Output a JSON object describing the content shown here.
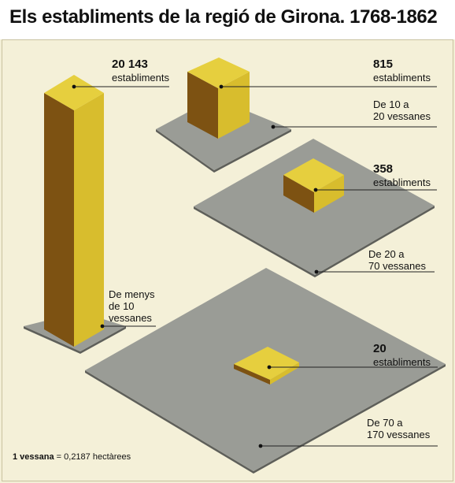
{
  "title": "Els establiments de la regió de Girona. 1768-1862",
  "chart_data": {
    "type": "isometric-block",
    "unit_label": "establiments",
    "groups": [
      {
        "range_label": "De menys de 10 vessanes",
        "range_lines": [
          "De menys",
          "de 10",
          "vessanes"
        ],
        "value": 20143,
        "value_text": "20 143"
      },
      {
        "range_label": "De 10 a 20 vessanes",
        "range_lines": [
          "De 10 a",
          "20 vessanes"
        ],
        "value": 815,
        "value_text": "815"
      },
      {
        "range_label": "De 20 a 70 vessanes",
        "range_lines": [
          "De 20 a",
          "70 vessanes"
        ],
        "value": 358,
        "value_text": "358"
      },
      {
        "range_label": "De 70 a 170 vessanes",
        "range_lines": [
          "De 70 a",
          "170 vessanes"
        ],
        "value": 20,
        "value_text": "20"
      }
    ]
  },
  "footnote": {
    "bold": "1 vessana",
    "rest": " = 0,2187 hectàrees"
  },
  "colors": {
    "plate": "#9a9c96",
    "plate_edge": "#5e5f5a",
    "top": "#e6cf3e",
    "front": "#d8bd2d",
    "side": "#7d5212"
  }
}
